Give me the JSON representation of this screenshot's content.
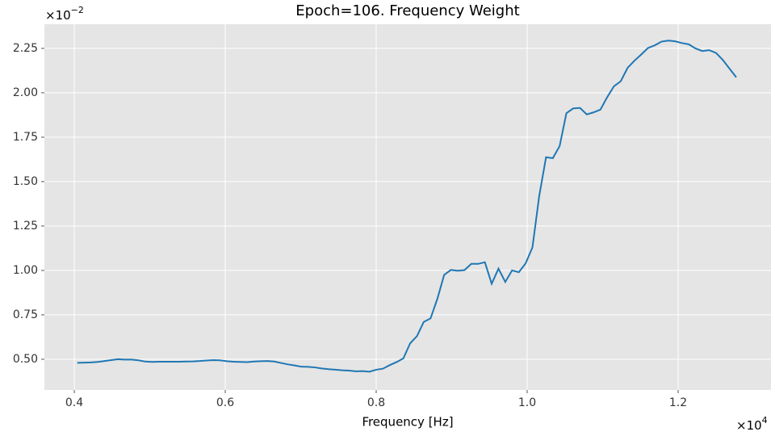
{
  "chart_data": {
    "type": "line",
    "title": "Epoch=106. Frequency Weight",
    "xlabel": "Frequency [Hz]",
    "x_offset": {
      "base": "×10",
      "exponent": "4"
    },
    "y_offset": {
      "base": "×10",
      "exponent": "−2"
    },
    "x": [
      0.404,
      0.413,
      0.422,
      0.431,
      0.44,
      0.449,
      0.458,
      0.467,
      0.476,
      0.485,
      0.494,
      0.503,
      0.512,
      0.521,
      0.53,
      0.539,
      0.548,
      0.557,
      0.566,
      0.575,
      0.584,
      0.593,
      0.602,
      0.611,
      0.62,
      0.629,
      0.638,
      0.647,
      0.656,
      0.665,
      0.674,
      0.683,
      0.692,
      0.701,
      0.71,
      0.719,
      0.728,
      0.737,
      0.746,
      0.755,
      0.764,
      0.773,
      0.782,
      0.791,
      0.8,
      0.809,
      0.818,
      0.827,
      0.836,
      0.845,
      0.854,
      0.863,
      0.872,
      0.881,
      0.89,
      0.899,
      0.908,
      0.917,
      0.926,
      0.935,
      0.944,
      0.953,
      0.962,
      0.971,
      0.98,
      0.989,
      0.998,
      1.007,
      1.016,
      1.025,
      1.034,
      1.043,
      1.052,
      1.061,
      1.07,
      1.079,
      1.088,
      1.097,
      1.106,
      1.115,
      1.124,
      1.133,
      1.142,
      1.151,
      1.16,
      1.169,
      1.178,
      1.187,
      1.196,
      1.205,
      1.214,
      1.223,
      1.232,
      1.241,
      1.25,
      1.259,
      1.277
    ],
    "series": [
      {
        "color": "#1f77b4",
        "values": [
          0.48,
          0.481,
          0.482,
          0.485,
          0.49,
          0.495,
          0.5,
          0.498,
          0.498,
          0.494,
          0.487,
          0.485,
          0.486,
          0.486,
          0.486,
          0.486,
          0.487,
          0.488,
          0.49,
          0.493,
          0.495,
          0.494,
          0.489,
          0.486,
          0.485,
          0.484,
          0.487,
          0.489,
          0.49,
          0.487,
          0.479,
          0.471,
          0.465,
          0.458,
          0.457,
          0.454,
          0.448,
          0.444,
          0.441,
          0.438,
          0.436,
          0.432,
          0.433,
          0.43,
          0.441,
          0.447,
          0.467,
          0.484,
          0.505,
          0.59,
          0.63,
          0.71,
          0.73,
          0.84,
          0.975,
          1.003,
          0.998,
          1.002,
          1.037,
          1.037,
          1.046,
          0.925,
          1.01,
          0.935,
          1.0,
          0.99,
          1.04,
          1.13,
          1.42,
          1.637,
          1.632,
          1.7,
          1.885,
          1.912,
          1.915,
          1.878,
          1.89,
          1.905,
          1.975,
          2.037,
          2.065,
          2.14,
          2.18,
          2.215,
          2.252,
          2.267,
          2.288,
          2.294,
          2.29,
          2.28,
          2.273,
          2.25,
          2.235,
          2.24,
          2.225,
          2.186,
          2.087
        ]
      }
    ],
    "xlim": [
      0.3604,
      1.323
    ],
    "xticks": [
      0.4,
      0.6,
      0.8,
      {
        "value": 1.0,
        "label": "1.0"
      },
      1.2
    ],
    "ylim": [
      0.327,
      2.386
    ],
    "yticks": [
      {
        "value": 0.5,
        "label": "0.50"
      },
      0.75,
      {
        "value": 1.0,
        "label": "1.00"
      },
      1.25,
      {
        "value": 1.5,
        "label": "1.50"
      },
      1.75,
      {
        "value": 2.0,
        "label": "2.00"
      },
      2.25
    ],
    "grid": true
  }
}
